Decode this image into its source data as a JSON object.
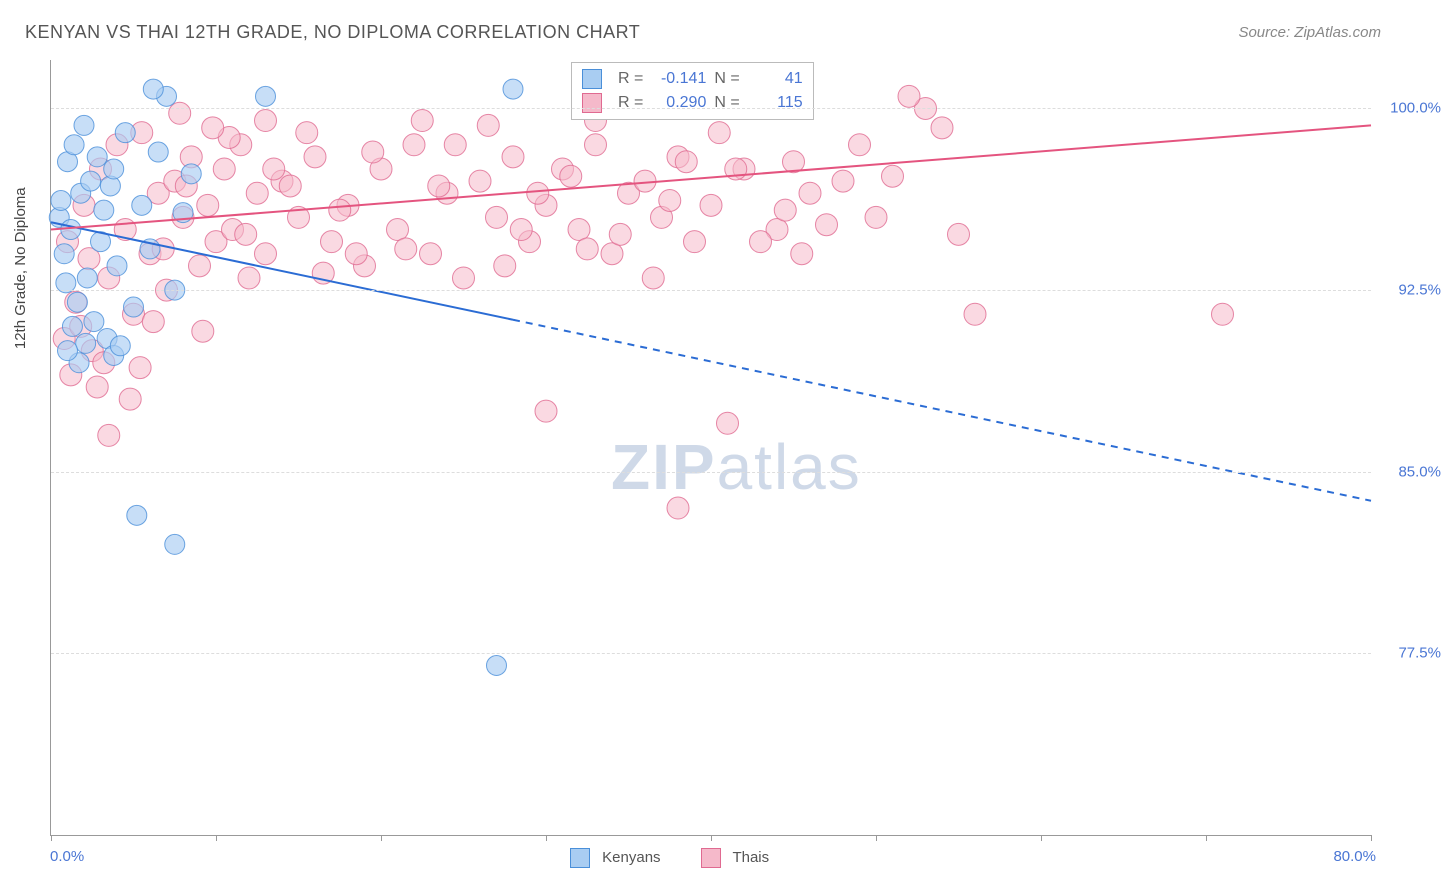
{
  "title": "KENYAN VS THAI 12TH GRADE, NO DIPLOMA CORRELATION CHART",
  "source_label": "Source: ZipAtlas.com",
  "ylabel": "12th Grade, No Diploma",
  "xaxis": {
    "min_label": "0.0%",
    "max_label": "80.0%",
    "min": 0,
    "max": 80,
    "ticks": [
      0,
      10,
      20,
      30,
      40,
      50,
      60,
      70,
      80
    ]
  },
  "yaxis": {
    "ticks": [
      77.5,
      85.0,
      92.5,
      100.0
    ],
    "tick_labels": [
      "77.5%",
      "85.0%",
      "92.5%",
      "100.0%"
    ],
    "min": 70,
    "max": 102
  },
  "legend": {
    "series1": {
      "label": "Kenyans",
      "swatch_fill": "#a9cdf2",
      "swatch_border": "#4a8fd9"
    },
    "series2": {
      "label": "Thais",
      "swatch_fill": "#f5b9ca",
      "swatch_border": "#e06a91"
    }
  },
  "stats": {
    "series1": {
      "R_label": "R =",
      "R": "-0.141",
      "N_label": "N =",
      "N": "41"
    },
    "series2": {
      "R_label": "R =",
      "R": "0.290",
      "N_label": "N =",
      "N": "115"
    }
  },
  "watermark": {
    "zip": "ZIP",
    "atlas": "atlas"
  },
  "chart": {
    "type": "scatter",
    "background": "#ffffff",
    "grid_color": "#dddddd",
    "axis_color": "#999999",
    "series": [
      {
        "name": "Kenyans",
        "marker_fill": "#a9cdf2",
        "marker_stroke": "#4a8fd9",
        "marker_opacity": 0.65,
        "marker_r": 10,
        "trend": {
          "y_at_x0": 95.3,
          "y_at_xmax": 83.8,
          "xmax_data": 28,
          "color": "#2b6cd4",
          "width": 2,
          "dash_after_data": true
        },
        "points": [
          [
            0.5,
            95.5
          ],
          [
            0.6,
            96.2
          ],
          [
            0.8,
            94.0
          ],
          [
            1.0,
            97.8
          ],
          [
            1.2,
            95.0
          ],
          [
            1.4,
            98.5
          ],
          [
            1.6,
            92.0
          ],
          [
            1.8,
            96.5
          ],
          [
            2.0,
            99.3
          ],
          [
            2.2,
            93.0
          ],
          [
            2.4,
            97.0
          ],
          [
            2.6,
            91.2
          ],
          [
            2.8,
            98.0
          ],
          [
            3.0,
            94.5
          ],
          [
            3.2,
            95.8
          ],
          [
            3.4,
            90.5
          ],
          [
            3.6,
            96.8
          ],
          [
            3.8,
            97.5
          ],
          [
            4.0,
            93.5
          ],
          [
            4.5,
            99.0
          ],
          [
            5.0,
            91.8
          ],
          [
            5.5,
            96.0
          ],
          [
            6.0,
            94.2
          ],
          [
            6.5,
            98.2
          ],
          [
            7.0,
            100.5
          ],
          [
            7.5,
            92.5
          ],
          [
            8.0,
            95.7
          ],
          [
            8.5,
            97.3
          ],
          [
            3.8,
            89.8
          ],
          [
            4.2,
            90.2
          ],
          [
            1.3,
            91.0
          ],
          [
            2.1,
            90.3
          ],
          [
            0.9,
            92.8
          ],
          [
            1.7,
            89.5
          ],
          [
            6.2,
            100.8
          ],
          [
            13.0,
            100.5
          ],
          [
            5.2,
            83.2
          ],
          [
            7.5,
            82.0
          ],
          [
            28.0,
            100.8
          ],
          [
            27.0,
            77.0
          ],
          [
            1.0,
            90.0
          ]
        ]
      },
      {
        "name": "Thais",
        "marker_fill": "#f5b9ca",
        "marker_stroke": "#e06a91",
        "marker_opacity": 0.55,
        "marker_r": 11,
        "trend": {
          "y_at_x0": 95.0,
          "y_at_xmax": 99.3,
          "xmax_data": 80,
          "color": "#e4547f",
          "width": 2,
          "dash_after_data": false
        },
        "points": [
          [
            1,
            94.5
          ],
          [
            1.5,
            92.0
          ],
          [
            2,
            96.0
          ],
          [
            2.5,
            90.0
          ],
          [
            3,
            97.5
          ],
          [
            3.5,
            93.0
          ],
          [
            4,
            98.5
          ],
          [
            4.5,
            95.0
          ],
          [
            5,
            91.5
          ],
          [
            5.5,
            99.0
          ],
          [
            6,
            94.0
          ],
          [
            6.5,
            96.5
          ],
          [
            7,
            92.5
          ],
          [
            7.5,
            97.0
          ],
          [
            8,
            95.5
          ],
          [
            8.5,
            98.0
          ],
          [
            9,
            93.5
          ],
          [
            9.5,
            96.0
          ],
          [
            10,
            94.5
          ],
          [
            10.5,
            97.5
          ],
          [
            11,
            95.0
          ],
          [
            11.5,
            98.5
          ],
          [
            12,
            93.0
          ],
          [
            12.5,
            96.5
          ],
          [
            13,
            94.0
          ],
          [
            14,
            97.0
          ],
          [
            15,
            95.5
          ],
          [
            16,
            98.0
          ],
          [
            17,
            94.5
          ],
          [
            18,
            96.0
          ],
          [
            19,
            93.5
          ],
          [
            20,
            97.5
          ],
          [
            21,
            95.0
          ],
          [
            22,
            98.5
          ],
          [
            23,
            94.0
          ],
          [
            24,
            96.5
          ],
          [
            25,
            93.0
          ],
          [
            26,
            97.0
          ],
          [
            27,
            95.5
          ],
          [
            28,
            98.0
          ],
          [
            29,
            94.5
          ],
          [
            30,
            96.0
          ],
          [
            31,
            97.5
          ],
          [
            32,
            95.0
          ],
          [
            33,
            98.5
          ],
          [
            34,
            94.0
          ],
          [
            35,
            96.5
          ],
          [
            36,
            97.0
          ],
          [
            37,
            95.5
          ],
          [
            38,
            98.0
          ],
          [
            39,
            94.5
          ],
          [
            40,
            96.0
          ],
          [
            42,
            97.5
          ],
          [
            44,
            95.0
          ],
          [
            46,
            96.5
          ],
          [
            48,
            97.0
          ],
          [
            50,
            95.5
          ],
          [
            53,
            100.0
          ],
          [
            54,
            99.2
          ],
          [
            1.2,
            89.0
          ],
          [
            2.8,
            88.5
          ],
          [
            3.2,
            89.5
          ],
          [
            4.8,
            88.0
          ],
          [
            0.8,
            90.5
          ],
          [
            1.8,
            91.0
          ],
          [
            5.4,
            89.3
          ],
          [
            2.3,
            93.8
          ],
          [
            6.8,
            94.2
          ],
          [
            8.2,
            96.8
          ],
          [
            10.8,
            98.8
          ],
          [
            13.5,
            97.5
          ],
          [
            15.5,
            99.0
          ],
          [
            17.5,
            95.8
          ],
          [
            19.5,
            98.2
          ],
          [
            21.5,
            94.2
          ],
          [
            23.5,
            96.8
          ],
          [
            26.5,
            99.3
          ],
          [
            28.5,
            95.0
          ],
          [
            31.5,
            97.2
          ],
          [
            34.5,
            94.8
          ],
          [
            37.5,
            96.2
          ],
          [
            40.5,
            99.0
          ],
          [
            43,
            94.5
          ],
          [
            45,
            97.8
          ],
          [
            47,
            95.2
          ],
          [
            49,
            98.5
          ],
          [
            30,
            87.5
          ],
          [
            41,
            87.0
          ],
          [
            38,
            83.5
          ],
          [
            55,
            94.8
          ],
          [
            56,
            91.5
          ],
          [
            71,
            91.5
          ],
          [
            3.5,
            86.5
          ],
          [
            13,
            99.5
          ],
          [
            16.5,
            93.2
          ],
          [
            22.5,
            99.5
          ],
          [
            27.5,
            93.5
          ],
          [
            33,
            99.5
          ],
          [
            36.5,
            93.0
          ],
          [
            41.5,
            97.5
          ],
          [
            45.5,
            94.0
          ],
          [
            7.8,
            99.8
          ],
          [
            9.8,
            99.2
          ],
          [
            11.8,
            94.8
          ],
          [
            14.5,
            96.8
          ],
          [
            18.5,
            94.0
          ],
          [
            24.5,
            98.5
          ],
          [
            29.5,
            96.5
          ],
          [
            32.5,
            94.2
          ],
          [
            38.5,
            97.8
          ],
          [
            44.5,
            95.8
          ],
          [
            51,
            97.2
          ],
          [
            52,
            100.5
          ],
          [
            6.2,
            91.2
          ],
          [
            9.2,
            90.8
          ]
        ]
      }
    ]
  }
}
